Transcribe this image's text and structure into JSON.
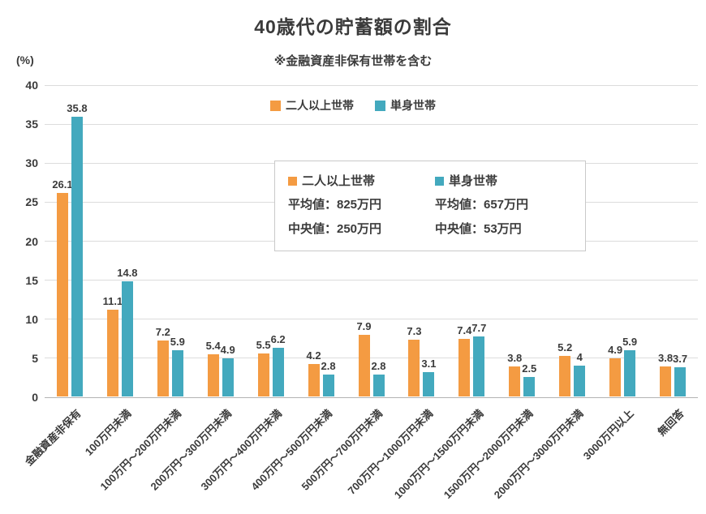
{
  "title": "40歳代の貯蓄額の割合",
  "subtitle": "※金融資産非保有世帯を含む",
  "y_axis_unit": "(%)",
  "colors": {
    "couple": "#F49B42",
    "single": "#43A9BE"
  },
  "legend": [
    {
      "label": "二人以上世帯",
      "color": "#F49B42"
    },
    {
      "label": "単身世帯",
      "color": "#43A9BE"
    }
  ],
  "info_box": {
    "columns": [
      {
        "label": "二人以上世帯",
        "color": "#F49B42",
        "mean": "平均値：825万円",
        "median": "中央値：250万円"
      },
      {
        "label": "単身世帯",
        "color": "#43A9BE",
        "mean": "平均値：657万円",
        "median": "中央値：53万円"
      }
    ]
  },
  "chart_data": {
    "type": "bar",
    "title": "40歳代の貯蓄額の割合",
    "subtitle": "※金融資産非保有世帯を含む",
    "categories": [
      "金融資産非保有",
      "100万円未満",
      "100万円～200万円未満",
      "200万円～300万円未満",
      "300万円～400万円未満",
      "400万円～500万円未満",
      "500万円～700万円未満",
      "700万円～1000万円未満",
      "1000万円～1500万円未満",
      "1500万円～2000万円未満",
      "2000万円～3000万円未満",
      "3000万円以上",
      "無回答"
    ],
    "series": [
      {
        "name": "二人以上世帯",
        "color": "#F49B42",
        "values": [
          26.1,
          11.1,
          7.2,
          5.4,
          5.5,
          4.2,
          7.9,
          7.3,
          7.4,
          3.8,
          5.2,
          4.9,
          3.8
        ]
      },
      {
        "name": "単身世帯",
        "color": "#43A9BE",
        "values": [
          35.8,
          14.8,
          5.9,
          4.9,
          6.2,
          2.8,
          2.8,
          3.1,
          7.7,
          2.5,
          4,
          5.9,
          3.7
        ]
      }
    ],
    "ylabel": "(%)",
    "ylim": [
      0,
      40
    ],
    "yticks": [
      0,
      5,
      10,
      15,
      20,
      25,
      30,
      35,
      40
    ],
    "grid": true,
    "legend_position": "top",
    "value_labels": true
  }
}
